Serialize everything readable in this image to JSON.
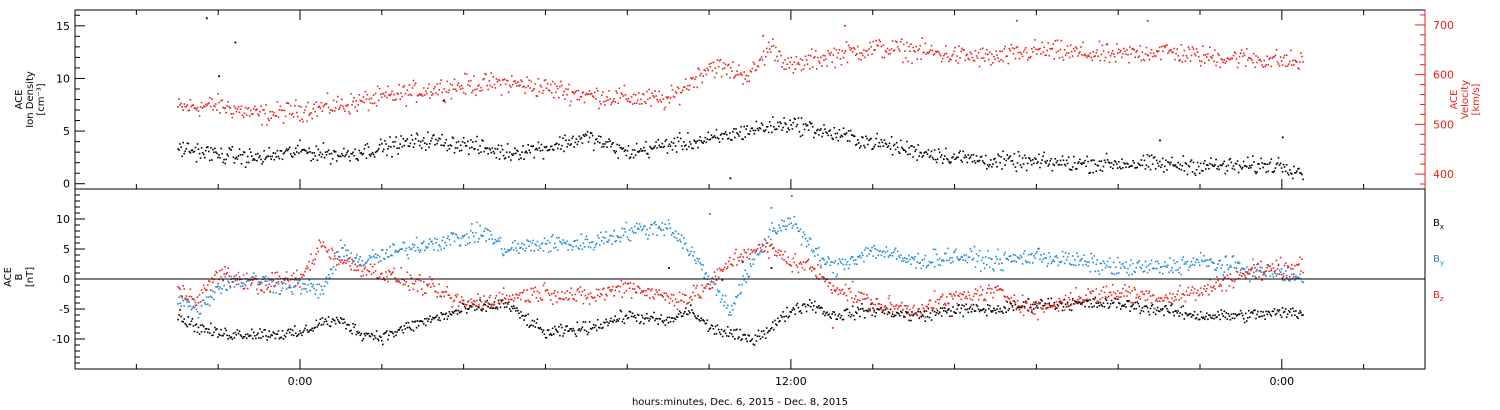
{
  "chart_data": [
    {
      "type": "scatter",
      "panel": "top",
      "left_axis": {
        "label_lines": [
          "ACE",
          "Ion Density",
          "[cm⁻³]"
        ],
        "ticks": [
          0,
          5,
          10,
          15
        ],
        "ylim": [
          -0.5,
          16.5
        ],
        "color": "#000000"
      },
      "right_axis": {
        "label_lines": [
          "ACE",
          "Velocity",
          "[km/s]"
        ],
        "ticks": [
          400,
          500,
          600,
          700
        ],
        "ylim": [
          370,
          730
        ],
        "color": "#e8221c"
      },
      "series": [
        {
          "axis": "left",
          "color": "#000000",
          "points": [
            [
              -3,
              3.5
            ],
            [
              -2,
              2.8
            ],
            [
              -1,
              2.5
            ],
            [
              0,
              3.2
            ],
            [
              1,
              2.8
            ],
            [
              2,
              3.5
            ],
            [
              3,
              4.2
            ],
            [
              4,
              3.8
            ],
            [
              5,
              3.0
            ],
            [
              6,
              3.5
            ],
            [
              7,
              4.5
            ],
            [
              8,
              3.0
            ],
            [
              9,
              3.8
            ],
            [
              10,
              4.2
            ],
            [
              11,
              5.2
            ],
            [
              12,
              5.8
            ],
            [
              13,
              4.8
            ],
            [
              14,
              4.0
            ],
            [
              15,
              3.2
            ],
            [
              16,
              2.6
            ],
            [
              17,
              2.2
            ],
            [
              18,
              2.1
            ],
            [
              19,
              2.0
            ],
            [
              20,
              2.0
            ],
            [
              21,
              1.9
            ],
            [
              22,
              1.8
            ],
            [
              23,
              1.7
            ],
            [
              24,
              1.9
            ],
            [
              24.5,
              1.2
            ]
          ],
          "outliers": [
            [
              -2.3,
              15.8
            ],
            [
              -1.6,
              13.5
            ],
            [
              -2.0,
              10.3
            ],
            [
              3.5,
              8.0
            ],
            [
              10.5,
              0.6
            ],
            [
              21,
              4.2
            ],
            [
              24,
              4.5
            ]
          ]
        },
        {
          "axis": "right",
          "color": "#e8221c",
          "points": [
            [
              -3,
              535
            ],
            [
              -2,
              540
            ],
            [
              -1,
              520
            ],
            [
              0,
              530
            ],
            [
              1,
              540
            ],
            [
              2,
              555
            ],
            [
              3,
              570
            ],
            [
              4,
              580
            ],
            [
              5,
              585
            ],
            [
              6,
              575
            ],
            [
              7,
              560
            ],
            [
              8,
              555
            ],
            [
              9,
              550
            ],
            [
              10,
              620
            ],
            [
              10.5,
              610
            ],
            [
              11,
              600
            ],
            [
              11.5,
              660
            ],
            [
              12,
              615
            ],
            [
              12.5,
              630
            ],
            [
              13,
              640
            ],
            [
              14,
              655
            ],
            [
              15,
              650
            ],
            [
              16,
              640
            ],
            [
              17,
              635
            ],
            [
              18,
              650
            ],
            [
              19,
              645
            ],
            [
              20,
              640
            ],
            [
              21,
              650
            ],
            [
              22,
              638
            ],
            [
              23,
              635
            ],
            [
              24,
              630
            ],
            [
              24.5,
              625
            ]
          ],
          "outliers": [
            [
              11.3,
              680
            ],
            [
              13.3,
              700
            ],
            [
              17.5,
              710
            ],
            [
              20.7,
              710
            ]
          ]
        }
      ]
    },
    {
      "type": "scatter",
      "panel": "bottom",
      "left_axis": {
        "label_lines": [
          "ACE",
          "B",
          "[nT]"
        ],
        "ticks": [
          -10,
          -5,
          0,
          5,
          10
        ],
        "ylim": [
          -15,
          15
        ],
        "color": "#000000"
      },
      "zero_line": true,
      "legend": [
        {
          "label": "B",
          "sub": "x",
          "color": "#000000"
        },
        {
          "label": "B",
          "sub": "y",
          "color": "#1e8ad6"
        },
        {
          "label": "B",
          "sub": "z",
          "color": "#e8221c"
        }
      ],
      "series": [
        {
          "name": "Bx",
          "color": "#000000",
          "points": [
            [
              -3,
              -6
            ],
            [
              -2.5,
              -8
            ],
            [
              -2,
              -9
            ],
            [
              -1,
              -9
            ],
            [
              0,
              -9
            ],
            [
              0.5,
              -7
            ],
            [
              1,
              -7
            ],
            [
              1.5,
              -9
            ],
            [
              2,
              -9.5
            ],
            [
              3,
              -7
            ],
            [
              4,
              -5
            ],
            [
              5,
              -4
            ],
            [
              6,
              -9
            ],
            [
              7,
              -8
            ],
            [
              8,
              -6
            ],
            [
              9,
              -7
            ],
            [
              9.5,
              -5
            ],
            [
              10,
              -8
            ],
            [
              11,
              -10
            ],
            [
              11.5,
              -8
            ],
            [
              12,
              -5
            ],
            [
              12.5,
              -4
            ],
            [
              13,
              -6
            ],
            [
              14,
              -5
            ],
            [
              15,
              -6
            ],
            [
              16,
              -5
            ],
            [
              17,
              -5
            ],
            [
              18,
              -4
            ],
            [
              19,
              -4
            ],
            [
              20,
              -4
            ],
            [
              21,
              -5
            ],
            [
              22,
              -6
            ],
            [
              23,
              -6
            ],
            [
              24,
              -5.5
            ],
            [
              24.5,
              -5.5
            ]
          ],
          "outliers": [
            [
              9,
              2
            ],
            [
              10.3,
              0
            ],
            [
              10.8,
              3
            ],
            [
              11.5,
              2
            ]
          ]
        },
        {
          "name": "By",
          "color": "#1e8ad6",
          "points": [
            [
              -3,
              -3
            ],
            [
              -2.5,
              -5
            ],
            [
              -2,
              -1
            ],
            [
              -1.5,
              0
            ],
            [
              -1,
              0
            ],
            [
              -0.5,
              -1
            ],
            [
              0,
              -1
            ],
            [
              0.5,
              -2
            ],
            [
              1,
              5
            ],
            [
              1.5,
              3
            ],
            [
              2,
              4
            ],
            [
              3,
              6
            ],
            [
              4,
              7
            ],
            [
              4.5,
              8
            ],
            [
              5,
              5
            ],
            [
              6,
              6
            ],
            [
              7,
              6
            ],
            [
              8,
              8
            ],
            [
              9,
              9
            ],
            [
              9.5,
              5
            ],
            [
              10,
              0
            ],
            [
              10.5,
              -5
            ],
            [
              11,
              2
            ],
            [
              11.5,
              8
            ],
            [
              12,
              10
            ],
            [
              12.5,
              5
            ],
            [
              13,
              2
            ],
            [
              14,
              5
            ],
            [
              15,
              3
            ],
            [
              16,
              4
            ],
            [
              17,
              3
            ],
            [
              18,
              4
            ],
            [
              19,
              3
            ],
            [
              20,
              2
            ],
            [
              21,
              2
            ],
            [
              22,
              3
            ],
            [
              23,
              2
            ],
            [
              24,
              1
            ],
            [
              24.5,
              0
            ]
          ],
          "outliers": [
            [
              10,
              11
            ],
            [
              11.5,
              12
            ]
          ]
        },
        {
          "name": "Bz",
          "color": "#e8221c",
          "points": [
            [
              -3,
              -2
            ],
            [
              -2.5,
              -3
            ],
            [
              -2,
              1
            ],
            [
              -1.5,
              0
            ],
            [
              -1,
              -1
            ],
            [
              -0.5,
              0
            ],
            [
              0,
              0
            ],
            [
              0.5,
              6
            ],
            [
              1,
              3
            ],
            [
              1.5,
              2
            ],
            [
              2,
              1
            ],
            [
              3,
              -1
            ],
            [
              4,
              -4
            ],
            [
              5,
              -3
            ],
            [
              6,
              -2
            ],
            [
              7,
              -3
            ],
            [
              8,
              -1
            ],
            [
              9,
              -3
            ],
            [
              9.5,
              -3
            ],
            [
              10,
              -1
            ],
            [
              10.5,
              3
            ],
            [
              11,
              5
            ],
            [
              11.5,
              5
            ],
            [
              12,
              3
            ],
            [
              12.5,
              2
            ],
            [
              13,
              -1
            ],
            [
              14,
              -4
            ],
            [
              15,
              -5
            ],
            [
              16,
              -3
            ],
            [
              17,
              -2
            ],
            [
              18,
              -5
            ],
            [
              19,
              -3
            ],
            [
              20,
              -2
            ],
            [
              21,
              -3
            ],
            [
              22,
              -2
            ],
            [
              23,
              1
            ],
            [
              24,
              2
            ],
            [
              24.5,
              2
            ]
          ],
          "outliers": [
            [
              12,
              14
            ],
            [
              13,
              -8
            ]
          ]
        }
      ]
    }
  ],
  "x_axis": {
    "range_hours": [
      -5.5,
      27.5
    ],
    "major_ticks": [
      0,
      12,
      24
    ],
    "tick_labels": [
      "0:00",
      "12:00",
      "0:00"
    ],
    "minor_step_hours": 2,
    "title": "hours:minutes, Dec.  6, 2015 - Dec.  8, 2015"
  }
}
